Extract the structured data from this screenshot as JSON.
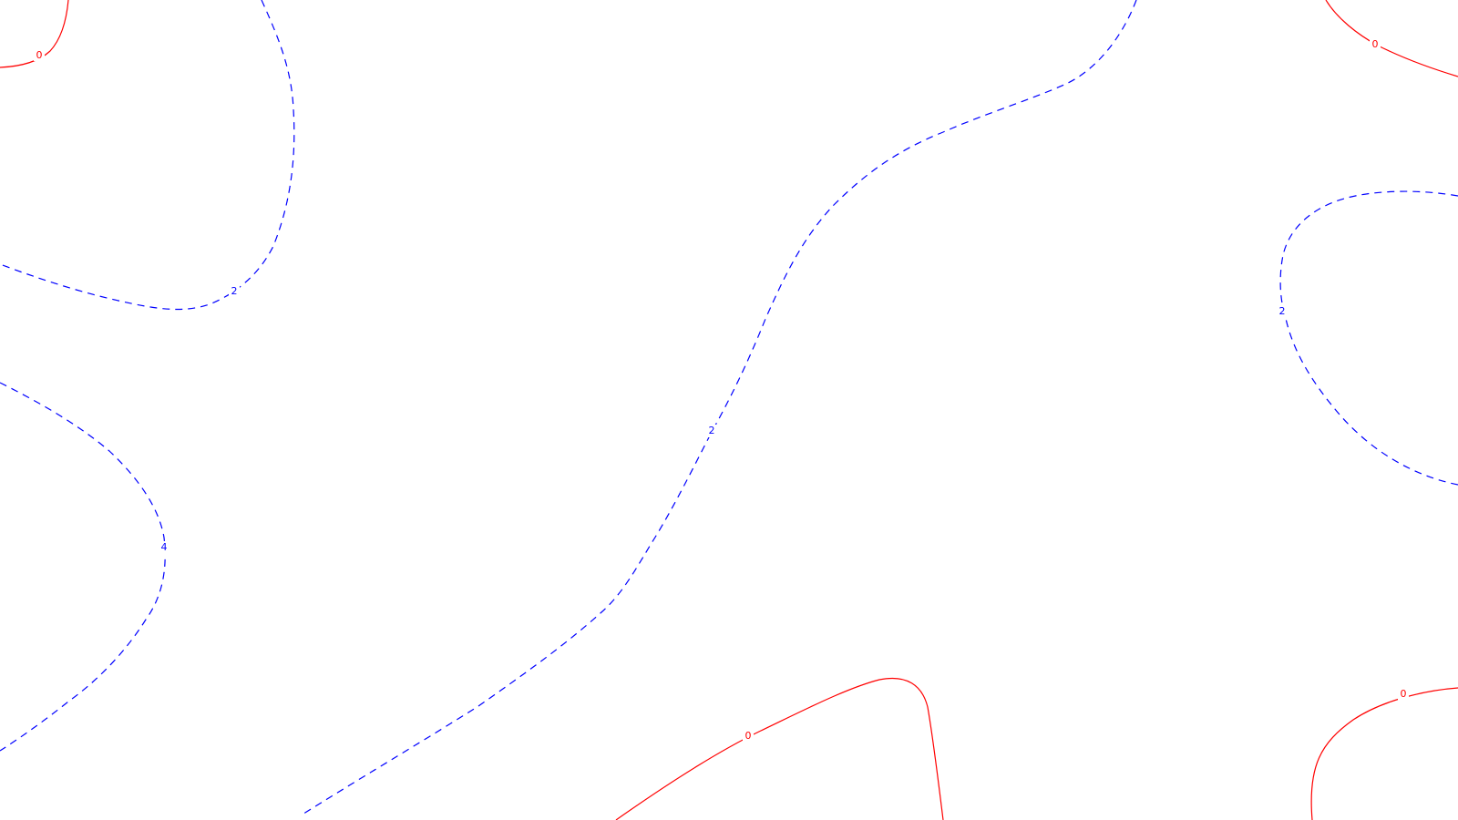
{
  "map": {
    "contour_levels": [
      {
        "level": "0",
        "color": "#ff0000",
        "style": "solid"
      },
      {
        "level": "2",
        "color": "#0000ff",
        "style": "dashed"
      },
      {
        "level": "4",
        "color": "#0000ff",
        "style": "dashed"
      }
    ],
    "labels": {
      "zero_top_left": "0",
      "zero_top_right": "0",
      "zero_bottom_center": "0",
      "zero_bottom_right": "0",
      "two_upper_left": "2",
      "two_center": "2",
      "two_right": "2",
      "four_left": "4"
    }
  }
}
